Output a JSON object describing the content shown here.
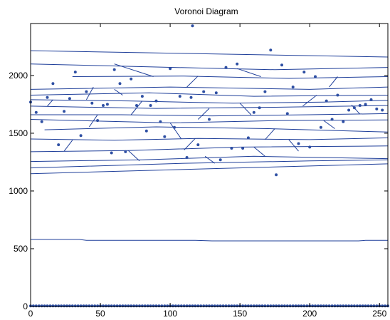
{
  "chart_data": {
    "type": "scatter",
    "title": "Voronoi Diagram",
    "xlabel": "",
    "ylabel": "",
    "xlim": [
      0,
      256
    ],
    "ylim": [
      0,
      2450
    ],
    "x_ticks": [
      0,
      50,
      100,
      150,
      200,
      250
    ],
    "y_ticks": [
      0,
      500,
      1000,
      1500,
      2000
    ],
    "grid": false,
    "colors": {
      "points": "#2e4fa3",
      "edges": "#1f3f9a",
      "axes": "#000000"
    },
    "points": [
      [
        0,
        1770
      ],
      [
        4,
        1680
      ],
      [
        8,
        1600
      ],
      [
        12,
        1810
      ],
      [
        16,
        1930
      ],
      [
        20,
        1400
      ],
      [
        24,
        1690
      ],
      [
        28,
        1800
      ],
      [
        32,
        2030
      ],
      [
        36,
        1480
      ],
      [
        40,
        1860
      ],
      [
        44,
        1760
      ],
      [
        48,
        1610
      ],
      [
        52,
        1740
      ],
      [
        55,
        1750
      ],
      [
        58,
        1330
      ],
      [
        60,
        2050
      ],
      [
        64,
        1930
      ],
      [
        68,
        1340
      ],
      [
        72,
        1970
      ],
      [
        76,
        1740
      ],
      [
        80,
        1820
      ],
      [
        83,
        1520
      ],
      [
        86,
        1740
      ],
      [
        90,
        1780
      ],
      [
        93,
        1600
      ],
      [
        96,
        1470
      ],
      [
        100,
        2060
      ],
      [
        103,
        1550
      ],
      [
        107,
        1820
      ],
      [
        112,
        1290
      ],
      [
        115,
        1810
      ],
      [
        116,
        2430
      ],
      [
        120,
        1400
      ],
      [
        124,
        1860
      ],
      [
        128,
        1620
      ],
      [
        133,
        1850
      ],
      [
        136,
        1270
      ],
      [
        140,
        2070
      ],
      [
        144,
        1370
      ],
      [
        148,
        2100
      ],
      [
        152,
        1370
      ],
      [
        156,
        1460
      ],
      [
        160,
        1680
      ],
      [
        164,
        1720
      ],
      [
        168,
        1860
      ],
      [
        172,
        2220
      ],
      [
        176,
        1140
      ],
      [
        180,
        2090
      ],
      [
        184,
        1670
      ],
      [
        188,
        1900
      ],
      [
        192,
        1410
      ],
      [
        196,
        2030
      ],
      [
        200,
        1380
      ],
      [
        204,
        1990
      ],
      [
        208,
        1550
      ],
      [
        212,
        1780
      ],
      [
        216,
        1620
      ],
      [
        220,
        1830
      ],
      [
        224,
        1600
      ],
      [
        228,
        1700
      ],
      [
        232,
        1720
      ],
      [
        236,
        1740
      ],
      [
        240,
        1750
      ],
      [
        244,
        1790
      ],
      [
        248,
        1710
      ],
      [
        252,
        1700
      ],
      [
        0,
        5
      ],
      [
        2,
        5
      ],
      [
        4,
        5
      ],
      [
        6,
        5
      ],
      [
        8,
        5
      ],
      [
        10,
        5
      ],
      [
        12,
        5
      ],
      [
        14,
        5
      ],
      [
        16,
        5
      ],
      [
        18,
        5
      ],
      [
        20,
        5
      ],
      [
        22,
        5
      ],
      [
        24,
        5
      ],
      [
        26,
        5
      ],
      [
        28,
        5
      ],
      [
        30,
        5
      ],
      [
        32,
        5
      ],
      [
        34,
        5
      ],
      [
        36,
        5
      ],
      [
        38,
        5
      ],
      [
        40,
        5
      ],
      [
        42,
        5
      ],
      [
        44,
        5
      ],
      [
        46,
        5
      ],
      [
        48,
        5
      ],
      [
        50,
        5
      ],
      [
        52,
        5
      ],
      [
        54,
        5
      ],
      [
        56,
        5
      ],
      [
        58,
        5
      ],
      [
        60,
        5
      ],
      [
        62,
        5
      ],
      [
        64,
        5
      ],
      [
        66,
        5
      ],
      [
        68,
        5
      ],
      [
        70,
        5
      ],
      [
        72,
        5
      ],
      [
        74,
        5
      ],
      [
        76,
        5
      ],
      [
        78,
        5
      ],
      [
        80,
        5
      ],
      [
        82,
        5
      ],
      [
        84,
        5
      ],
      [
        86,
        5
      ],
      [
        88,
        5
      ],
      [
        90,
        5
      ],
      [
        92,
        5
      ],
      [
        94,
        5
      ],
      [
        96,
        5
      ],
      [
        98,
        5
      ],
      [
        100,
        5
      ],
      [
        102,
        5
      ],
      [
        104,
        5
      ],
      [
        106,
        5
      ],
      [
        108,
        5
      ],
      [
        110,
        5
      ],
      [
        112,
        5
      ],
      [
        114,
        5
      ],
      [
        116,
        5
      ],
      [
        118,
        5
      ],
      [
        120,
        5
      ],
      [
        122,
        5
      ],
      [
        124,
        5
      ],
      [
        126,
        5
      ],
      [
        128,
        5
      ],
      [
        130,
        5
      ],
      [
        132,
        5
      ],
      [
        134,
        5
      ],
      [
        136,
        5
      ],
      [
        138,
        5
      ],
      [
        140,
        5
      ],
      [
        142,
        5
      ],
      [
        144,
        5
      ],
      [
        146,
        5
      ],
      [
        148,
        5
      ],
      [
        150,
        5
      ],
      [
        152,
        5
      ],
      [
        154,
        5
      ],
      [
        156,
        5
      ],
      [
        158,
        5
      ],
      [
        160,
        5
      ],
      [
        162,
        5
      ],
      [
        164,
        5
      ],
      [
        166,
        5
      ],
      [
        168,
        5
      ],
      [
        170,
        5
      ],
      [
        172,
        5
      ],
      [
        174,
        5
      ],
      [
        176,
        5
      ],
      [
        178,
        5
      ],
      [
        180,
        5
      ],
      [
        182,
        5
      ],
      [
        184,
        5
      ],
      [
        186,
        5
      ],
      [
        188,
        5
      ],
      [
        190,
        5
      ],
      [
        192,
        5
      ],
      [
        194,
        5
      ],
      [
        196,
        5
      ],
      [
        198,
        5
      ],
      [
        200,
        5
      ],
      [
        202,
        5
      ],
      [
        204,
        5
      ],
      [
        206,
        5
      ],
      [
        208,
        5
      ],
      [
        210,
        5
      ],
      [
        212,
        5
      ],
      [
        214,
        5
      ],
      [
        216,
        5
      ],
      [
        218,
        5
      ],
      [
        220,
        5
      ],
      [
        222,
        5
      ],
      [
        224,
        5
      ],
      [
        226,
        5
      ],
      [
        228,
        5
      ],
      [
        230,
        5
      ],
      [
        232,
        5
      ],
      [
        234,
        5
      ],
      [
        236,
        5
      ],
      [
        238,
        5
      ],
      [
        240,
        5
      ],
      [
        242,
        5
      ],
      [
        244,
        5
      ],
      [
        246,
        5
      ],
      [
        248,
        5
      ],
      [
        250,
        5
      ],
      [
        252,
        5
      ],
      [
        254,
        5
      ],
      [
        256,
        5
      ]
    ],
    "edges": [
      [
        [
          0,
          2215
        ],
        [
          256,
          2160
        ]
      ],
      [
        [
          0,
          2100
        ],
        [
          120,
          2065
        ],
        [
          175,
          2050
        ],
        [
          256,
          2070
        ]
      ],
      [
        [
          30,
          1990
        ],
        [
          110,
          1995
        ],
        [
          185,
          1975
        ],
        [
          256,
          1990
        ]
      ],
      [
        [
          0,
          1880
        ],
        [
          100,
          1900
        ],
        [
          200,
          1880
        ],
        [
          256,
          1900
        ]
      ],
      [
        [
          0,
          1830
        ],
        [
          85,
          1850
        ],
        [
          160,
          1820
        ],
        [
          256,
          1830
        ]
      ],
      [
        [
          0,
          1790
        ],
        [
          70,
          1780
        ],
        [
          145,
          1760
        ],
        [
          210,
          1770
        ],
        [
          256,
          1785
        ]
      ],
      [
        [
          0,
          1735
        ],
        [
          90,
          1715
        ],
        [
          175,
          1725
        ],
        [
          256,
          1740
        ]
      ],
      [
        [
          0,
          1660
        ],
        [
          65,
          1660
        ],
        [
          130,
          1650
        ],
        [
          200,
          1660
        ],
        [
          256,
          1670
        ]
      ],
      [
        [
          0,
          1620
        ],
        [
          100,
          1590
        ],
        [
          180,
          1610
        ],
        [
          256,
          1615
        ]
      ],
      [
        [
          10,
          1530
        ],
        [
          90,
          1555
        ],
        [
          170,
          1540
        ],
        [
          256,
          1510
        ]
      ],
      [
        [
          0,
          1450
        ],
        [
          60,
          1440
        ],
        [
          120,
          1455
        ],
        [
          200,
          1445
        ],
        [
          256,
          1460
        ]
      ],
      [
        [
          0,
          1340
        ],
        [
          70,
          1350
        ],
        [
          150,
          1380
        ],
        [
          256,
          1390
        ]
      ],
      [
        [
          0,
          1255
        ],
        [
          80,
          1270
        ],
        [
          160,
          1300
        ],
        [
          256,
          1280
        ]
      ],
      [
        [
          0,
          1200
        ],
        [
          110,
          1240
        ],
        [
          200,
          1260
        ],
        [
          256,
          1270
        ]
      ],
      [
        [
          0,
          1150
        ],
        [
          256,
          1235
        ]
      ],
      [
        [
          0,
          580
        ],
        [
          35,
          580
        ],
        [
          40,
          572
        ],
        [
          118,
          572
        ],
        [
          130,
          568
        ],
        [
          235,
          568
        ],
        [
          240,
          572
        ],
        [
          256,
          572
        ]
      ],
      [
        [
          60,
          2100
        ],
        [
          88,
          1990
        ]
      ],
      [
        [
          148,
          2060
        ],
        [
          165,
          1990
        ]
      ],
      [
        [
          120,
          1995
        ],
        [
          112,
          1900
        ]
      ],
      [
        [
          45,
          1900
        ],
        [
          40,
          1790
        ]
      ],
      [
        [
          205,
          1830
        ],
        [
          195,
          1735
        ]
      ],
      [
        [
          150,
          1760
        ],
        [
          158,
          1660
        ]
      ],
      [
        [
          80,
          1780
        ],
        [
          72,
          1660
        ]
      ],
      [
        [
          128,
          1715
        ],
        [
          120,
          1620
        ]
      ],
      [
        [
          48,
          1660
        ],
        [
          42,
          1555
        ]
      ],
      [
        [
          210,
          1610
        ],
        [
          218,
          1540
        ]
      ],
      [
        [
          100,
          1590
        ],
        [
          108,
          1450
        ]
      ],
      [
        [
          175,
          1540
        ],
        [
          168,
          1445
        ]
      ],
      [
        [
          30,
          1440
        ],
        [
          24,
          1345
        ]
      ],
      [
        [
          118,
          1455
        ],
        [
          110,
          1355
        ]
      ],
      [
        [
          185,
          1445
        ],
        [
          192,
          1345
        ]
      ],
      [
        [
          70,
          1350
        ],
        [
          78,
          1260
        ]
      ],
      [
        [
          160,
          1380
        ],
        [
          168,
          1300
        ]
      ],
      [
        [
          125,
          1300
        ],
        [
          132,
          1240
        ]
      ],
      [
        [
          230,
          1745
        ],
        [
          236,
          1665
        ]
      ],
      [
        [
          16,
          1790
        ],
        [
          12,
          1735
        ]
      ],
      [
        [
          60,
          1880
        ],
        [
          66,
          1830
        ]
      ],
      [
        [
          220,
          1990
        ],
        [
          214,
          1900
        ]
      ]
    ]
  }
}
